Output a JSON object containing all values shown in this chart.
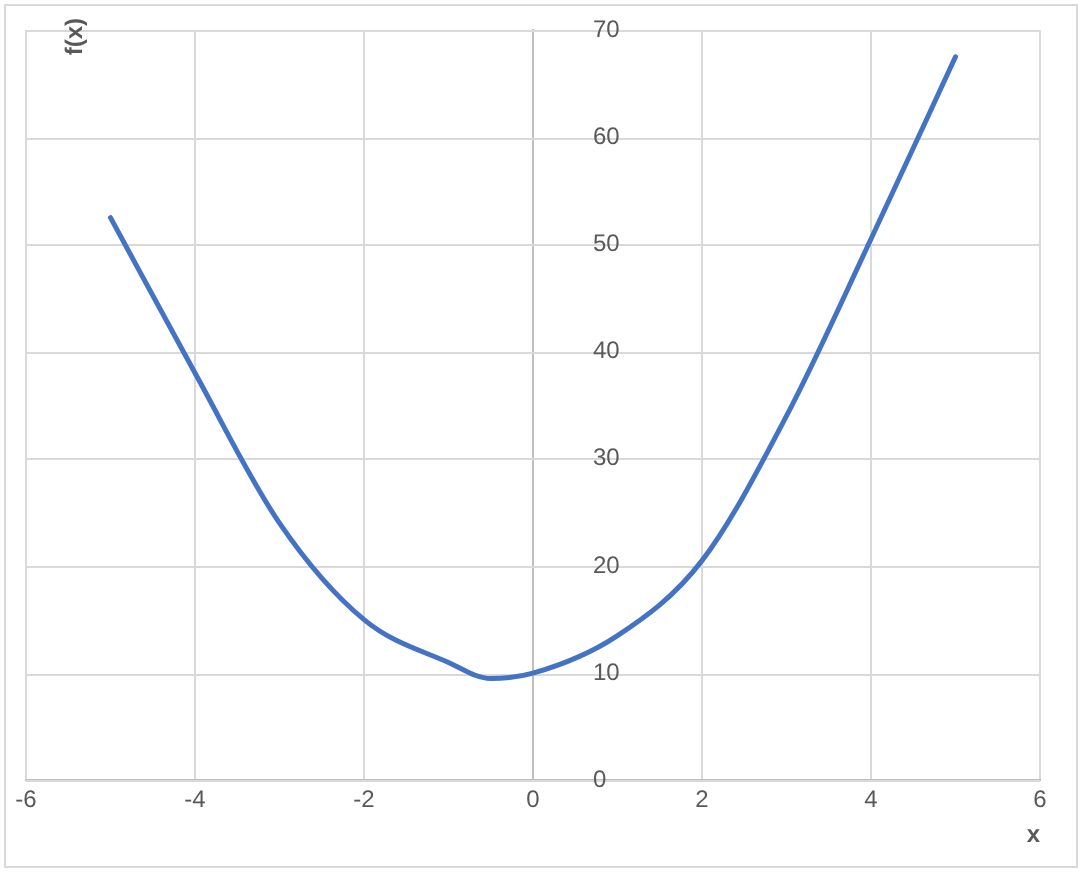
{
  "chart_data": {
    "type": "line",
    "xlabel": "x",
    "ylabel": "f(x)",
    "x": [
      -5,
      -4,
      -3,
      -2,
      -1,
      -0.5,
      0,
      1,
      2,
      3,
      4,
      5
    ],
    "series": [
      {
        "color": "#4472c4",
        "values": [
          52.5,
          38,
          24,
          15,
          11,
          9.5,
          10,
          13.5,
          20.5,
          34,
          50.5,
          67.5
        ]
      }
    ],
    "xlim": [
      -6,
      6
    ],
    "xticks": [
      -6,
      -4,
      -2,
      0,
      2,
      4,
      6
    ],
    "ylim": [
      0,
      70
    ],
    "yticks": [
      0,
      10,
      20,
      30,
      40,
      50,
      60,
      70
    ],
    "grid": true,
    "marker": "none",
    "line_style": "solid"
  }
}
